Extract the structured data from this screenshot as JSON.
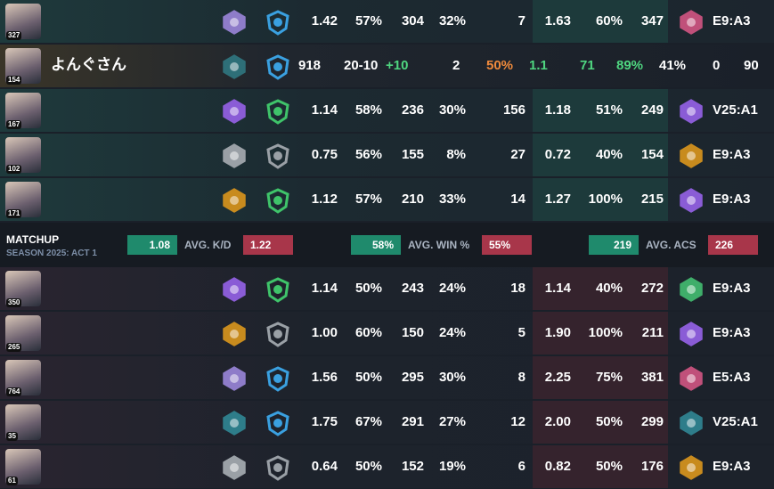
{
  "team": [
    {
      "level": "327",
      "cells": [
        "1.42",
        "57%",
        "304",
        "32%",
        "7",
        "1.63",
        "60%",
        "347",
        "E9:A3"
      ]
    },
    {
      "level": "154",
      "name": "よんぐさん",
      "cells": [
        "918",
        "20-10",
        "+10",
        "2",
        "50%",
        "1.1",
        "71",
        "89%",
        "41%",
        "0",
        "90"
      ]
    },
    {
      "level": "167",
      "cells": [
        "1.14",
        "58%",
        "236",
        "30%",
        "156",
        "1.18",
        "51%",
        "249",
        "V25:A1"
      ]
    },
    {
      "level": "102",
      "cells": [
        "0.75",
        "56%",
        "155",
        "8%",
        "27",
        "0.72",
        "40%",
        "154",
        "E9:A3"
      ]
    },
    {
      "level": "171",
      "cells": [
        "1.12",
        "57%",
        "210",
        "33%",
        "14",
        "1.27",
        "100%",
        "215",
        "E9:A3"
      ]
    }
  ],
  "matchup": {
    "title": "MATCHUP",
    "season": "SEASON 2025: ACT 1",
    "kd": {
      "label": "AVG. K/D",
      "team": "1.08",
      "enemy": "1.22"
    },
    "win": {
      "label": "AVG. WIN %",
      "team": "58%",
      "enemy": "55%"
    },
    "acs": {
      "label": "AVG. ACS",
      "team": "219",
      "enemy": "226"
    }
  },
  "enemy": [
    {
      "level": "350",
      "cells": [
        "1.14",
        "50%",
        "243",
        "24%",
        "18",
        "1.14",
        "40%",
        "272",
        "E9:A3"
      ]
    },
    {
      "level": "265",
      "cells": [
        "1.00",
        "60%",
        "150",
        "24%",
        "5",
        "1.90",
        "100%",
        "211",
        "E9:A3"
      ]
    },
    {
      "level": "764",
      "cells": [
        "1.56",
        "50%",
        "295",
        "30%",
        "8",
        "2.25",
        "75%",
        "381",
        "E5:A3"
      ]
    },
    {
      "level": "35",
      "cells": [
        "1.75",
        "67%",
        "291",
        "27%",
        "12",
        "2.00",
        "50%",
        "299",
        "V25:A1"
      ]
    },
    {
      "level": "61",
      "cells": [
        "0.64",
        "50%",
        "152",
        "19%",
        "6",
        "0.82",
        "50%",
        "176",
        "E9:A3"
      ]
    }
  ]
}
